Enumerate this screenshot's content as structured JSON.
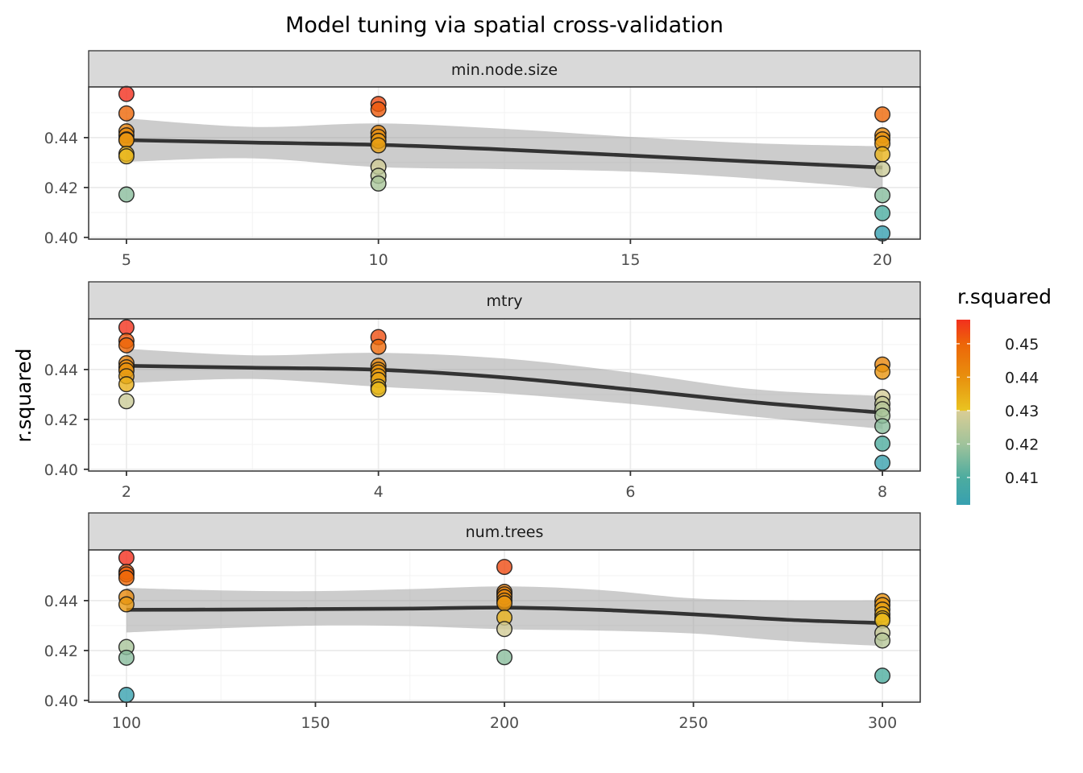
{
  "chart_data": {
    "type": "scatter",
    "title": "Model tuning via spatial cross-validation",
    "xlabel": "",
    "ylabel": "r.squared",
    "grid": true,
    "layout": "facet_wrap, 3 rows, free x scales",
    "colors": {
      "point_outline": "#1A1A1A",
      "smooth_line": "#333333",
      "confidence_band": "#999999",
      "confidence_band_alpha": 0.5,
      "strip_background": "#D9D9D9",
      "panel_border": "#333333"
    },
    "facets": [
      {
        "name": "min.node.size",
        "xlim": [
          4.25,
          20.75
        ],
        "ylim": [
          0.3993,
          0.4603
        ],
        "x_ticks": [
          5,
          10,
          15,
          20
        ],
        "x_tick_labels": [
          "5",
          "10",
          "15",
          "20"
        ],
        "x_minor": [
          7.5,
          12.5,
          17.5
        ],
        "y_ticks": [
          0.4,
          0.42,
          0.44
        ],
        "y_tick_labels": [
          "0.40",
          "0.42",
          "0.44"
        ],
        "y_minor": [
          0.41,
          0.43,
          0.45
        ],
        "points": [
          {
            "x": 5,
            "y": [
              0.4575,
              0.4497,
              0.4425,
              0.4409,
              0.4393,
              0.439,
              0.4335,
              0.4325,
              0.4172
            ]
          },
          {
            "x": 10,
            "y": [
              0.4535,
              0.4513,
              0.4419,
              0.4403,
              0.4387,
              0.4369,
              0.4283,
              0.4247,
              0.4216
            ]
          },
          {
            "x": 20,
            "y": [
              0.4493,
              0.4409,
              0.4393,
              0.4376,
              0.4333,
              0.4274,
              0.4169,
              0.4097,
              0.4016
            ]
          }
        ],
        "smooth": {
          "x": [
            5,
            7.5,
            10,
            12.5,
            15,
            17.5,
            20
          ],
          "y": [
            0.439,
            0.438,
            0.4371,
            0.4352,
            0.4328,
            0.4303,
            0.428
          ],
          "ymin": [
            0.4303,
            0.4317,
            0.4282,
            0.4274,
            0.4264,
            0.4235,
            0.4194
          ],
          "ymax": [
            0.4477,
            0.4443,
            0.4457,
            0.4435,
            0.4403,
            0.4377,
            0.4365
          ]
        }
      },
      {
        "name": "mtry",
        "xlim": [
          1.7,
          8.3
        ],
        "ylim": [
          0.3993,
          0.4603
        ],
        "x_ticks": [
          2,
          4,
          6,
          8
        ],
        "x_tick_labels": [
          "2",
          "4",
          "6",
          "8"
        ],
        "x_minor": [
          3,
          5,
          7
        ],
        "y_ticks": [
          0.4,
          0.42,
          0.44
        ],
        "y_tick_labels": [
          "0.40",
          "0.42",
          "0.44"
        ],
        "y_minor": [
          0.41,
          0.43,
          0.45
        ],
        "points": [
          {
            "x": 2,
            "y": [
              0.4569,
              0.4515,
              0.4497,
              0.4425,
              0.4409,
              0.4396,
              0.4373,
              0.4341,
              0.4273
            ]
          },
          {
            "x": 4,
            "y": [
              0.453,
              0.4491,
              0.4415,
              0.4399,
              0.4388,
              0.4373,
              0.4358,
              0.4331,
              0.432
            ]
          },
          {
            "x": 8,
            "y": [
              0.442,
              0.4391,
              0.4289,
              0.4262,
              0.4241,
              0.4215,
              0.4173,
              0.4103,
              0.4026
            ]
          }
        ],
        "smooth": {
          "x": [
            2,
            3,
            4,
            5,
            6,
            7,
            8
          ],
          "y": [
            0.4415,
            0.4407,
            0.4399,
            0.4368,
            0.432,
            0.4268,
            0.4227
          ],
          "ymin": [
            0.4346,
            0.4362,
            0.4331,
            0.4304,
            0.4262,
            0.421,
            0.4162
          ],
          "ymax": [
            0.4483,
            0.4457,
            0.4467,
            0.4444,
            0.4388,
            0.432,
            0.4294
          ]
        }
      },
      {
        "name": "num.trees",
        "xlim": [
          90,
          310
        ],
        "ylim": [
          0.3993,
          0.4603
        ],
        "x_ticks": [
          100,
          150,
          200,
          250,
          300
        ],
        "x_tick_labels": [
          "100",
          "150",
          "200",
          "250",
          "300"
        ],
        "x_minor": [
          125,
          175,
          225,
          275
        ],
        "y_ticks": [
          0.4,
          0.42,
          0.44
        ],
        "y_tick_labels": [
          "0.40",
          "0.42",
          "0.44"
        ],
        "y_minor": [
          0.41,
          0.43,
          0.45
        ],
        "points": [
          {
            "x": 100,
            "y": [
              0.4572,
              0.4515,
              0.4505,
              0.4491,
              0.4414,
              0.4385,
              0.4214,
              0.4171,
              0.4022
            ]
          },
          {
            "x": 200,
            "y": [
              0.4535,
              0.4435,
              0.4425,
              0.4414,
              0.44,
              0.4389,
              0.4332,
              0.4286,
              0.4173
            ]
          },
          {
            "x": 300,
            "y": [
              0.4398,
              0.4382,
              0.4364,
              0.4345,
              0.4329,
              0.432,
              0.427,
              0.424,
              0.4099
            ]
          }
        ],
        "smooth": {
          "x": [
            100,
            125,
            150,
            175,
            200,
            225,
            250,
            275,
            300
          ],
          "y": [
            0.4363,
            0.4364,
            0.4366,
            0.4368,
            0.4372,
            0.4363,
            0.4345,
            0.4323,
            0.431
          ],
          "ymin": [
            0.4272,
            0.4289,
            0.43,
            0.4298,
            0.4285,
            0.428,
            0.4268,
            0.4238,
            0.4218
          ],
          "ymax": [
            0.4451,
            0.4441,
            0.4438,
            0.4446,
            0.4457,
            0.4443,
            0.4409,
            0.4401,
            0.4401
          ]
        }
      }
    ],
    "legend": {
      "title": "r.squared",
      "type": "colorbar",
      "position": "right",
      "range": [
        0.4018,
        0.4572
      ],
      "ticks": [
        0.41,
        0.42,
        0.43,
        0.44,
        0.45
      ],
      "tick_labels": [
        "0.41",
        "0.42",
        "0.43",
        "0.44",
        "0.45"
      ],
      "color_stops": [
        {
          "value": 0.4018,
          "color": "#37A0B0"
        },
        {
          "value": 0.41,
          "color": "#4DAC9F"
        },
        {
          "value": 0.42,
          "color": "#A0C39B"
        },
        {
          "value": 0.4299,
          "color": "#D9CD95"
        },
        {
          "value": 0.43,
          "color": "#E9C421"
        },
        {
          "value": 0.44,
          "color": "#E8900E"
        },
        {
          "value": 0.45,
          "color": "#ED6508"
        },
        {
          "value": 0.4572,
          "color": "#F2301E"
        }
      ]
    }
  }
}
